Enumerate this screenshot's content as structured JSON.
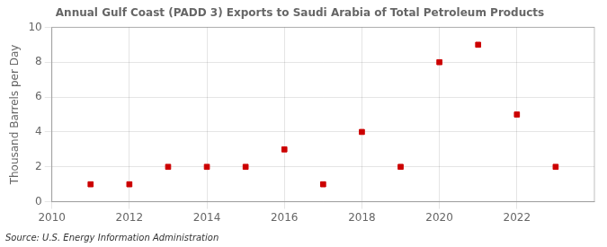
{
  "chart_data": {
    "type": "scatter",
    "title": "Annual Gulf Coast (PADD 3) Exports to Saudi Arabia of Total Petroleum Products",
    "ylabel": "Thousand Barrels per Day",
    "annotations": [
      "Source: U.S. Energy Information Administration"
    ],
    "x": [
      2011,
      2012,
      2013,
      2014,
      2015,
      2016,
      2017,
      2018,
      2019,
      2020,
      2021,
      2022,
      2023
    ],
    "values": [
      1,
      1,
      2,
      2,
      2,
      3,
      1,
      4,
      2,
      8,
      9,
      5,
      2
    ],
    "color": "#cc0000",
    "marker": "square",
    "xlim": [
      2010,
      2024
    ],
    "xticks": [
      2010,
      2012,
      2014,
      2016,
      2018,
      2020,
      2022
    ],
    "ylim": [
      0,
      10
    ],
    "yticks": [
      0,
      2,
      4,
      6,
      8,
      10
    ],
    "grid": true
  }
}
